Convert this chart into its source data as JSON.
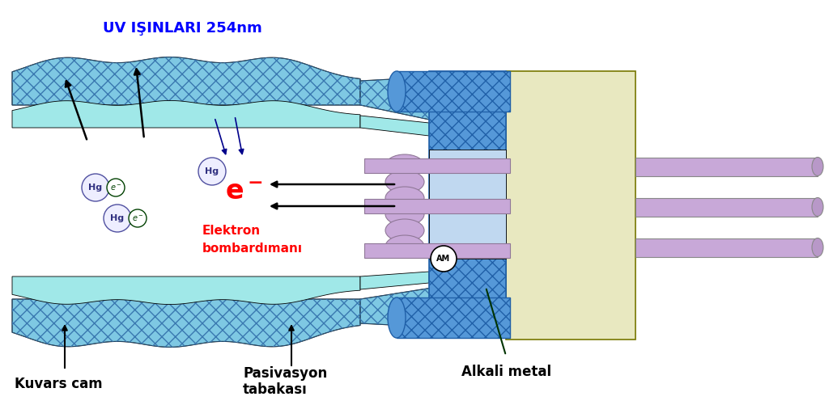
{
  "bg_color": "#ffffff",
  "uv_label": "UV IŞINLARI 254nm",
  "uv_label_color": "#0000ff",
  "uv_label_fontsize": 13,
  "glass_hatch_color": "#6ab0d8",
  "glass_base_color": "#7ec8e3",
  "inner_cyan_color": "#a0e8e8",
  "white_interior": "#ffffff",
  "blue_collar_color": "#5598d8",
  "blue_collar_dark": "#2060a8",
  "end_cap_color": "#e8e8c0",
  "end_cap_outline": "#888800",
  "coil_color": "#c8a8d8",
  "coil_outline": "#907898",
  "pin_color": "#c8a8d8",
  "pin_outline": "#888888",
  "hg_fill": "#eeeeff",
  "hg_outline": "#5050a0",
  "hg_text": "#303080",
  "e_fill": "#ffffff",
  "e_outline": "#004000",
  "e_text": "#004000",
  "arrow_color": "#000000",
  "uv_arrow_color": "#00008b",
  "am_fill": "#ffffff",
  "am_outline": "#000000",
  "red_text": "#ff0000",
  "label_color": "#000000",
  "label_kuvars": "Kuvars cam",
  "label_pasiv": "Pasivasyon\ntabakası",
  "label_alkali": "Alkali metal",
  "label_fontsize": 12,
  "elektron_label": "Elektron\nbombardımanı"
}
